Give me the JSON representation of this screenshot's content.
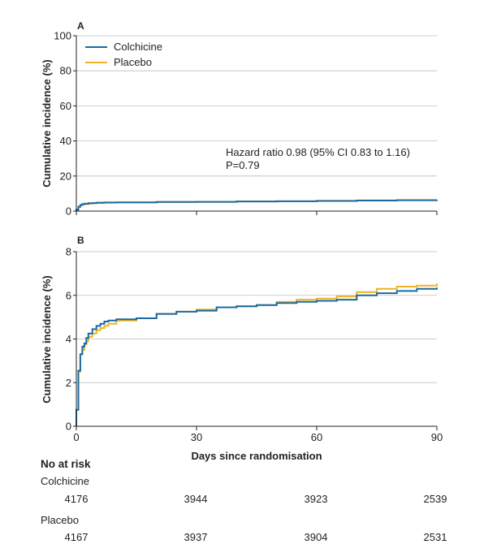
{
  "chart_data": [
    {
      "type": "line",
      "panel_label": "A",
      "ylabel": "Cumulative incidence (%)",
      "xlabel": "",
      "xlim": [
        0,
        90
      ],
      "ylim": [
        0,
        100
      ],
      "yticks": [
        0,
        20,
        40,
        60,
        80,
        100
      ],
      "xticks": [
        0,
        30,
        60,
        90
      ],
      "show_x_tick_labels": false,
      "legend": "top-left",
      "annotation": [
        "Hazard ratio 0.98 (95% CI 0.83 to 1.16)",
        "P=0.79"
      ],
      "series": [
        {
          "name": "Colchicine",
          "color": "#1a6aa0",
          "x": [
            0,
            0.5,
            1,
            1.5,
            2,
            3,
            4,
            5,
            7,
            10,
            20,
            30,
            40,
            50,
            60,
            70,
            80,
            90
          ],
          "y": [
            0.8,
            2.5,
            3.5,
            4.0,
            4.2,
            4.5,
            4.6,
            4.8,
            4.9,
            5.0,
            5.2,
            5.3,
            5.5,
            5.6,
            5.8,
            6.0,
            6.2,
            6.4
          ]
        },
        {
          "name": "Placebo",
          "color": "#f0b323",
          "x": [
            0,
            0.5,
            1,
            1.5,
            2,
            3,
            4,
            5,
            7,
            10,
            20,
            30,
            40,
            50,
            60,
            70,
            80,
            90
          ],
          "y": [
            0.7,
            2.5,
            3.4,
            3.8,
            4.0,
            4.3,
            4.5,
            4.6,
            4.8,
            4.9,
            5.2,
            5.3,
            5.5,
            5.6,
            5.9,
            6.1,
            6.3,
            6.5
          ]
        }
      ]
    },
    {
      "type": "line",
      "panel_label": "B",
      "ylabel": "Cumulative incidence (%)",
      "xlabel": "Days since randomisation",
      "xlim": [
        0,
        90
      ],
      "ylim": [
        0,
        8
      ],
      "yticks": [
        0,
        2,
        4,
        6,
        8
      ],
      "xticks": [
        0,
        30,
        60,
        90
      ],
      "series": [
        {
          "name": "Colchicine",
          "color": "#1a6aa0",
          "x": [
            0,
            0.5,
            1,
            1.5,
            2,
            2.5,
            3,
            4,
            5,
            6,
            7,
            8,
            10,
            15,
            20,
            25,
            30,
            35,
            40,
            45,
            50,
            55,
            60,
            65,
            70,
            75,
            80,
            85,
            90
          ],
          "y": [
            0.75,
            2.55,
            3.3,
            3.65,
            3.8,
            4.05,
            4.25,
            4.45,
            4.6,
            4.7,
            4.8,
            4.85,
            4.9,
            4.95,
            5.15,
            5.25,
            5.3,
            5.45,
            5.5,
            5.55,
            5.65,
            5.7,
            5.75,
            5.8,
            6.0,
            6.1,
            6.2,
            6.3,
            6.35
          ]
        },
        {
          "name": "Placebo",
          "color": "#f0b323",
          "x": [
            0,
            0.5,
            1,
            1.5,
            2,
            2.5,
            3,
            4,
            5,
            6,
            7,
            8,
            10,
            15,
            20,
            25,
            30,
            35,
            40,
            45,
            50,
            55,
            60,
            65,
            70,
            75,
            80,
            85,
            90
          ],
          "y": [
            0.75,
            2.5,
            3.3,
            3.5,
            3.75,
            3.9,
            4.1,
            4.25,
            4.4,
            4.5,
            4.6,
            4.7,
            4.85,
            4.95,
            5.15,
            5.25,
            5.35,
            5.45,
            5.5,
            5.55,
            5.7,
            5.8,
            5.85,
            5.95,
            6.15,
            6.3,
            6.4,
            6.45,
            6.55
          ]
        }
      ]
    }
  ],
  "risk_table": {
    "title": "No at risk",
    "groups": [
      {
        "name": "Colchicine",
        "values": [
          "4176",
          "3944",
          "3923",
          "2539"
        ]
      },
      {
        "name": "Placebo",
        "values": [
          "4167",
          "3937",
          "3904",
          "2531"
        ]
      }
    ]
  }
}
